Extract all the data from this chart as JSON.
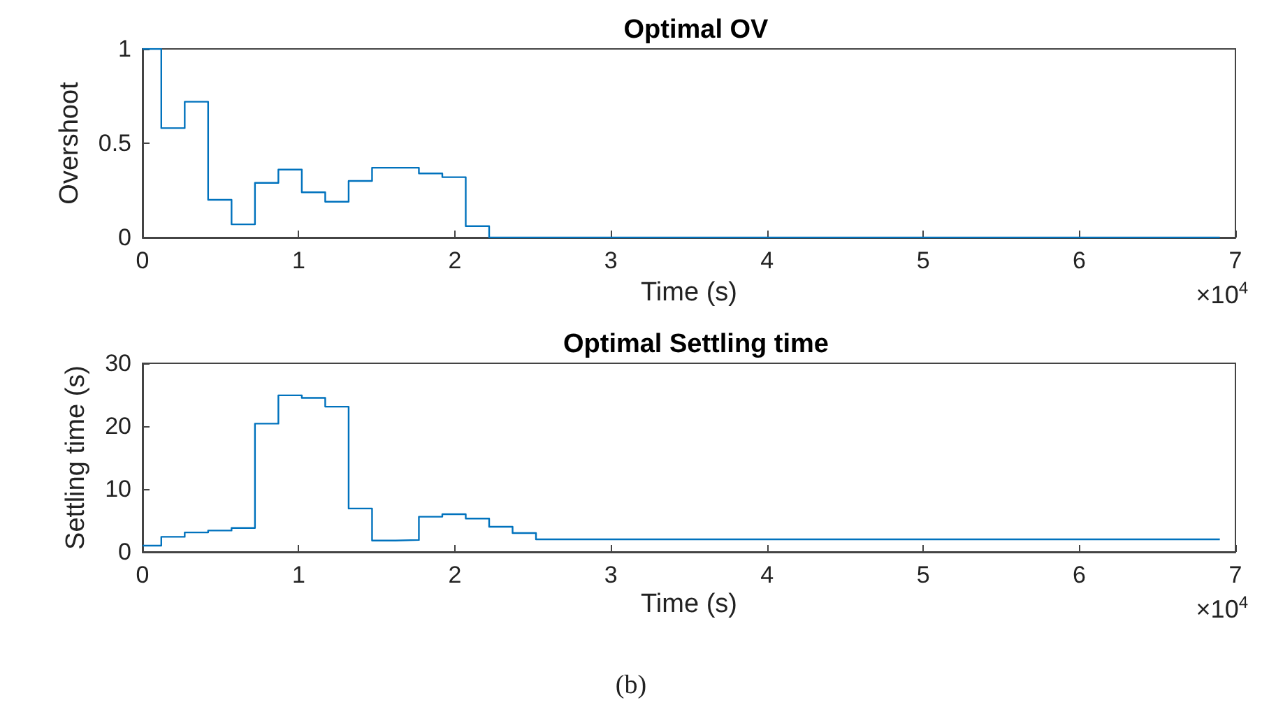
{
  "chart_data": [
    {
      "type": "step",
      "title": "Optimal OV",
      "xlabel": "Time (s)",
      "ylabel": "Overshoot",
      "color": "#0072bd",
      "x": [
        0,
        0.12,
        0.27,
        0.42,
        0.57,
        0.72,
        0.87,
        1.02,
        1.17,
        1.32,
        1.47,
        1.62,
        1.77,
        1.92,
        2.07,
        2.22,
        6.9
      ],
      "values": [
        1,
        0.58,
        0.72,
        0.2,
        0.07,
        0.29,
        0.36,
        0.24,
        0.19,
        0.3,
        0.37,
        0.37,
        0.34,
        0.32,
        0.06,
        0,
        0
      ],
      "xlim": [
        0,
        7
      ],
      "xticks": [
        0,
        1,
        2,
        3,
        4,
        5,
        6,
        7
      ],
      "ylim": [
        0,
        1
      ],
      "yticks": [
        0,
        0.5,
        1
      ],
      "grid": false,
      "annotations": [
        "×10$^{4}$"
      ]
    },
    {
      "type": "step",
      "title": "Optimal Settling time",
      "xlabel": "Time (s)",
      "ylabel": "Settling time (s)",
      "color": "#0072bd",
      "x": [
        0,
        0.12,
        0.27,
        0.42,
        0.57,
        0.72,
        0.87,
        1.02,
        1.17,
        1.32,
        1.47,
        1.62,
        1.77,
        1.92,
        2.07,
        2.22,
        2.37,
        2.52,
        6.9
      ],
      "values": [
        1,
        2.4,
        3.1,
        3.4,
        3.8,
        20.4,
        24.9,
        24.5,
        23.1,
        6.9,
        1.8,
        1.9,
        5.6,
        6,
        5.3,
        4,
        3,
        2,
        2
      ],
      "xlim": [
        0,
        7
      ],
      "xticks": [
        0,
        1,
        2,
        3,
        4,
        5,
        6,
        7
      ],
      "ylim": [
        0,
        30
      ],
      "yticks": [
        0,
        10,
        20,
        30
      ],
      "grid": false,
      "annotations": [
        "×10$^{4}$",
        "(b)"
      ]
    }
  ]
}
